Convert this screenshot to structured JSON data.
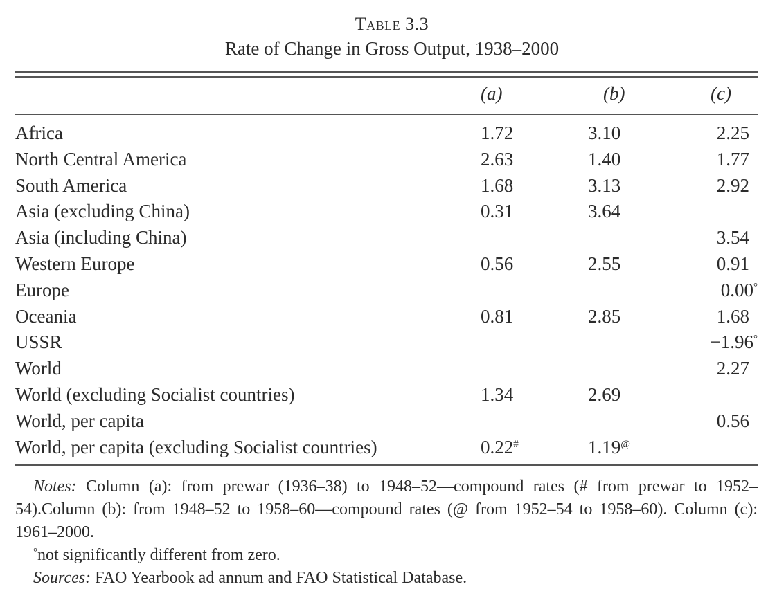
{
  "table_label": "Table 3.3",
  "table_title": "Rate of Change in Gross Output, 1938–2000",
  "columns": [
    "(a)",
    "(b)",
    "(c)"
  ],
  "rows": [
    {
      "region": "Africa",
      "a": "1.72",
      "b": "3.10",
      "c": "2.25"
    },
    {
      "region": "North Central America",
      "a": "2.63",
      "b": "1.40",
      "c": "1.77"
    },
    {
      "region": "South America",
      "a": "1.68",
      "b": "3.13",
      "c": "2.92"
    },
    {
      "region": "Asia (excluding China)",
      "a": "0.31",
      "b": "3.64",
      "c": ""
    },
    {
      "region": "Asia (including China)",
      "a": "",
      "b": "",
      "c": "3.54"
    },
    {
      "region": "Western Europe",
      "a": "0.56",
      "b": "2.55",
      "c": "0.91"
    },
    {
      "region": "Europe",
      "a": "",
      "b": "",
      "c": "0.00",
      "c_mark": "°"
    },
    {
      "region": "Oceania",
      "a": "0.81",
      "b": "2.85",
      "c": "1.68"
    },
    {
      "region": "USSR",
      "a": "",
      "b": "",
      "c": "−1.96",
      "c_mark": "°"
    },
    {
      "region": "World",
      "a": "",
      "b": "",
      "c": "2.27"
    },
    {
      "region": "World (excluding Socialist countries)",
      "a": "1.34",
      "b": "2.69",
      "c": ""
    },
    {
      "region": "World, per capita",
      "a": "",
      "b": "",
      "c": "0.56"
    },
    {
      "region": "World, per capita (excluding Socialist countries)",
      "a": "0.22",
      "a_mark": "#",
      "b": "1.19",
      "b_mark": "@",
      "c": ""
    }
  ],
  "notes": {
    "label": "Notes:",
    "text": " Column (a): from prewar (1936–38) to 1948–52—compound rates (# from prewar to 1952–54).Column (b): from 1948–52 to 1958–60—compound rates (@ from 1952–54 to 1958–60). Column (c): 1961–2000."
  },
  "footnote": {
    "mark": "°",
    "text": "not significantly different from zero."
  },
  "sources": {
    "label": "Sources:",
    "text": " FAO Yearbook ad annum and FAO Statistical Database."
  }
}
